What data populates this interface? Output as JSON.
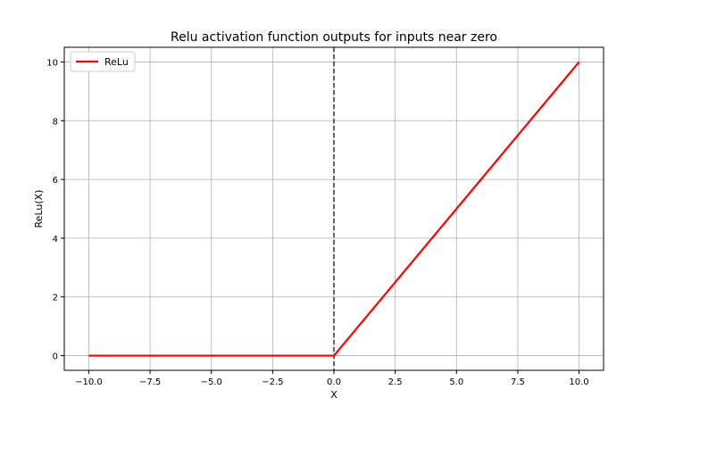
{
  "chart_data": {
    "type": "line",
    "title": "Relu activation function outputs for inputs near zero",
    "xlabel": "X",
    "ylabel": "ReLu(X)",
    "xlim": [
      -11,
      11
    ],
    "ylim": [
      -0.5,
      10.5
    ],
    "x_ticks": [
      -10.0,
      -7.5,
      -5.0,
      -2.5,
      0.0,
      2.5,
      5.0,
      7.5,
      10.0
    ],
    "x_tick_labels": [
      "−10.0",
      "−7.5",
      "−5.0",
      "−2.5",
      "0.0",
      "2.5",
      "5.0",
      "7.5",
      "10.0"
    ],
    "y_ticks": [
      0,
      2,
      4,
      6,
      8,
      10
    ],
    "y_tick_labels": [
      "0",
      "2",
      "4",
      "6",
      "8",
      "10"
    ],
    "grid": true,
    "legend_position": "top-left",
    "reference_line": {
      "x": 0,
      "style": "dashed",
      "color": "#000000"
    },
    "series": [
      {
        "name": "ReLu",
        "color": "#ff0000",
        "x": [
          -10,
          -7.5,
          -5,
          -2.5,
          0,
          2.5,
          5,
          7.5,
          10
        ],
        "y": [
          0,
          0,
          0,
          0,
          0,
          2.5,
          5,
          7.5,
          10
        ]
      }
    ]
  }
}
